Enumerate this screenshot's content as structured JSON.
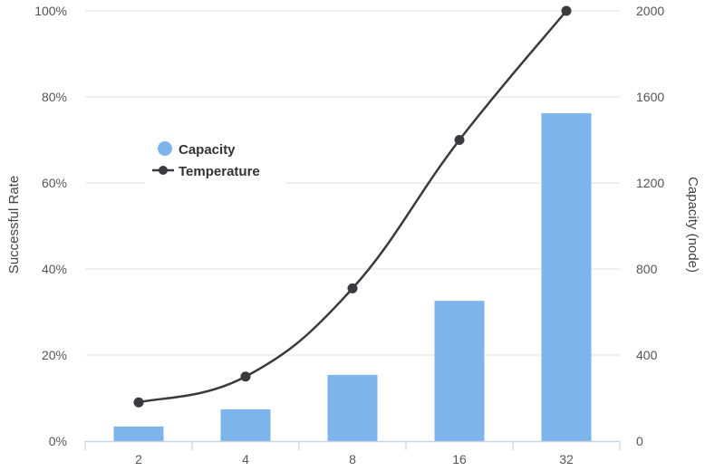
{
  "chart_data": {
    "type": "bar",
    "categories": [
      "2",
      "4",
      "8",
      "16",
      "32"
    ],
    "series": [
      {
        "name": "Capacity",
        "type": "bar",
        "axis": "right",
        "values": [
          68,
          148,
          308,
          652,
          1524
        ],
        "color": "#7db4ec"
      },
      {
        "name": "Temperature",
        "type": "line",
        "axis": "left",
        "values": [
          9,
          15,
          35.5,
          70,
          100
        ],
        "color": "#3a3a3e"
      }
    ],
    "y_left": {
      "label": "Successful Rate",
      "min": 0,
      "max": 100,
      "ticks": [
        "0%",
        "20%",
        "40%",
        "60%",
        "80%",
        "100%"
      ]
    },
    "y_right": {
      "label": "Capacity (node)",
      "min": 0,
      "max": 2000,
      "ticks": [
        "0",
        "400",
        "800",
        "1200",
        "1600",
        "2000"
      ]
    },
    "grid": true,
    "legend_position": "upper-left inside plot"
  }
}
